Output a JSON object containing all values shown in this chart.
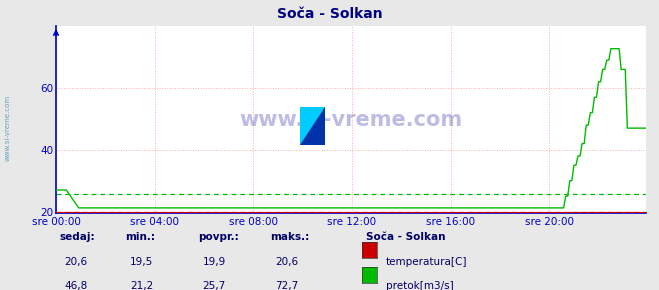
{
  "title": "Soča - Solkan",
  "bg_color": "#e8e8e8",
  "plot_bg_color": "#ffffff",
  "title_color": "#000080",
  "watermark": "www.si-vreme.com",
  "ylim": [
    19.5,
    80
  ],
  "yticks": [
    20,
    40,
    60
  ],
  "n_points": 288,
  "temp_color": "#cc0000",
  "flow_color": "#00bb00",
  "x_labels": [
    "sre 00:00",
    "sre 04:00",
    "sre 08:00",
    "sre 12:00",
    "sre 16:00",
    "sre 20:00"
  ],
  "x_tick_idx": [
    0,
    48,
    96,
    144,
    192,
    240
  ],
  "table_headers": [
    "sedaj:",
    "min.:",
    "povpr.:",
    "maks.:"
  ],
  "temp_vals": [
    "20,6",
    "19,5",
    "19,9",
    "20,6"
  ],
  "flow_vals": [
    "46,8",
    "21,2",
    "25,7",
    "72,7"
  ],
  "legend_title": "Soča - Solkan",
  "legend_items": [
    "temperatura[C]",
    "pretok[m3/s]"
  ],
  "legend_colors": [
    "#cc0000",
    "#00bb00"
  ],
  "flow_avg": 25.7,
  "temp_avg": 19.9,
  "axis_color": "#0000cc",
  "tick_color": "#0000cc",
  "left_label": "www.si-vreme.com"
}
